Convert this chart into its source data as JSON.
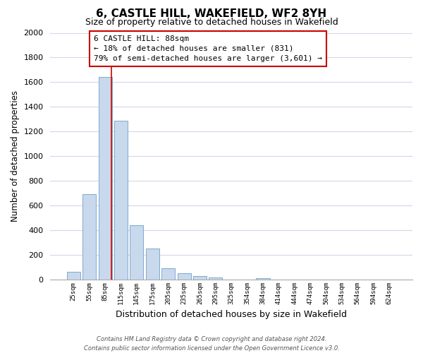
{
  "title": "6, CASTLE HILL, WAKEFIELD, WF2 8YH",
  "subtitle": "Size of property relative to detached houses in Wakefield",
  "xlabel": "Distribution of detached houses by size in Wakefield",
  "ylabel": "Number of detached properties",
  "bar_labels": [
    "25sqm",
    "55sqm",
    "85sqm",
    "115sqm",
    "145sqm",
    "175sqm",
    "205sqm",
    "235sqm",
    "265sqm",
    "295sqm",
    "325sqm",
    "354sqm",
    "384sqm",
    "414sqm",
    "444sqm",
    "474sqm",
    "504sqm",
    "534sqm",
    "564sqm",
    "594sqm",
    "624sqm"
  ],
  "bar_values": [
    65,
    695,
    1640,
    1285,
    440,
    250,
    90,
    52,
    30,
    20,
    0,
    0,
    12,
    0,
    0,
    0,
    0,
    0,
    0,
    0,
    0
  ],
  "bar_facecolor": "#c8d9ed",
  "bar_edgecolor": "#7fa8cc",
  "grid_color": "#d0d8e8",
  "property_line_x": 2.42,
  "annotation_title": "6 CASTLE HILL: 88sqm",
  "annotation_line1": "← 18% of detached houses are smaller (831)",
  "annotation_line2": "79% of semi-detached houses are larger (3,601) →",
  "annotation_box_color": "#ffffff",
  "annotation_border_color": "#cc0000",
  "vline_color": "#cc0000",
  "ylim": [
    0,
    2000
  ],
  "yticks": [
    0,
    200,
    400,
    600,
    800,
    1000,
    1200,
    1400,
    1600,
    1800,
    2000
  ],
  "footer_line1": "Contains HM Land Registry data © Crown copyright and database right 2024.",
  "footer_line2": "Contains public sector information licensed under the Open Government Licence v3.0."
}
